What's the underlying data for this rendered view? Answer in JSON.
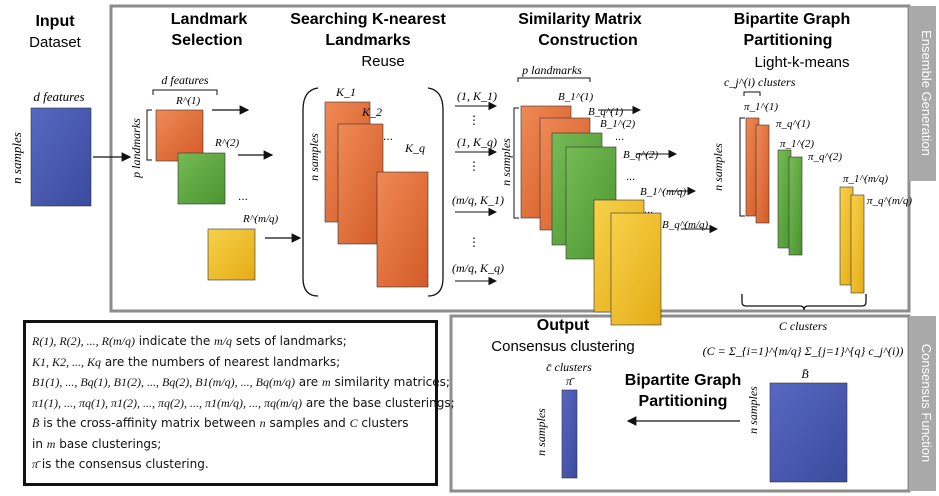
{
  "input": {
    "title": "Input",
    "subtitle": "Dataset",
    "features_label": "d features",
    "samples_label": "n samples"
  },
  "landmark_selection": {
    "title_line1": "Landmark",
    "title_line2": "Selection",
    "features_label": "d features",
    "landmarks_label": "p landmarks",
    "sets": [
      "R^(1)",
      "R^(2)",
      "R^(m/q)"
    ],
    "ellipsis": "..."
  },
  "knn": {
    "title_line1": "Searching K-nearest",
    "title_line2": "Landmarks",
    "subtitle": "Reuse",
    "samples_label": "n samples",
    "k_labels": [
      "K_1",
      "K_2",
      "K_q"
    ],
    "pairs": [
      "(1, K_1)",
      "(1, K_q)",
      "(m/q, K_1)",
      "(m/q, K_q)"
    ]
  },
  "similarity": {
    "title_line1": "Similarity Matrix",
    "title_line2": "Construction",
    "landmarks_label": "p landmarks",
    "samples_label": "n samples",
    "matrices": [
      "B_1^(1)",
      "B_q^(1)",
      "B_1^(2)",
      "B_q^(2)",
      "B_1^(m/q)",
      "B_q^(m/q)"
    ]
  },
  "partition": {
    "title_line1": "Bipartite Graph",
    "title_line2": "Partitioning",
    "subtitle": "Light-k-means",
    "clusters_label": "c_j^(i) clusters",
    "samples_label": "n samples",
    "pis": [
      "π_1^(1)",
      "π_q^(1)",
      "π_1^(2)",
      "π_q^(2)",
      "π_1^(m/q)",
      "π_q^(m/q)"
    ]
  },
  "ensemble_generation_label": "Ensemble Generation",
  "consensus_function_label": "Consensus Function",
  "consensus": {
    "c_clusters": "C clusters",
    "c_formula": "(C = Σ_{i=1}^{m/q} Σ_{j=1}^{q} c_j^(i))",
    "b_bar": "B̄",
    "samples_label": "n samples",
    "bgp_line1": "Bipartite Graph",
    "bgp_line2": "Partitioning",
    "output_title": "Output",
    "output_subtitle": "Consensus clustering",
    "cbar_clusters": "c̄ clusters",
    "pi_bar": "π̄",
    "out_samples_label": "n samples"
  },
  "legend": {
    "l1_math": "R(1), R(2), ..., R(m/q)",
    "l1_text": " indicate the ",
    "l1_math2": "m/q",
    "l1_text2": " sets of landmarks;",
    "l2_math": "K1, K2, ..., Kq",
    "l2_text": " are the numbers of nearest landmarks;",
    "l3_math": "B1(1), ..., Bq(1), B1(2), ..., Bq(2), B1(m/q), ..., Bq(m/q)",
    "l3_text": " are ",
    "l3_math2": "m",
    "l3_text2": " similarity matrices;",
    "l4_math": "π1(1), ..., πq(1), π1(2), ..., πq(2), ..., π1(m/q), ..., πq(m/q)",
    "l4_text": " are the base clusterings;",
    "l5_math": "B̄",
    "l5_text": " is the cross-affinity matrix between ",
    "l5_math2": "n",
    "l5_text2": " samples and ",
    "l5_math3": "C",
    "l5_text3": " clusters",
    "l6_text": "in ",
    "l6_math": "m",
    "l6_text2": " base clusterings;",
    "l7_math": "π̄",
    "l7_text": " is the consensus clustering."
  },
  "colors": {
    "blue": "#4a5bb0",
    "orange": "#e2703a",
    "green": "#5ea83e",
    "yellow": "#f0c02a",
    "frame": "#8c8c8c",
    "tab": "#a9a9a9"
  }
}
